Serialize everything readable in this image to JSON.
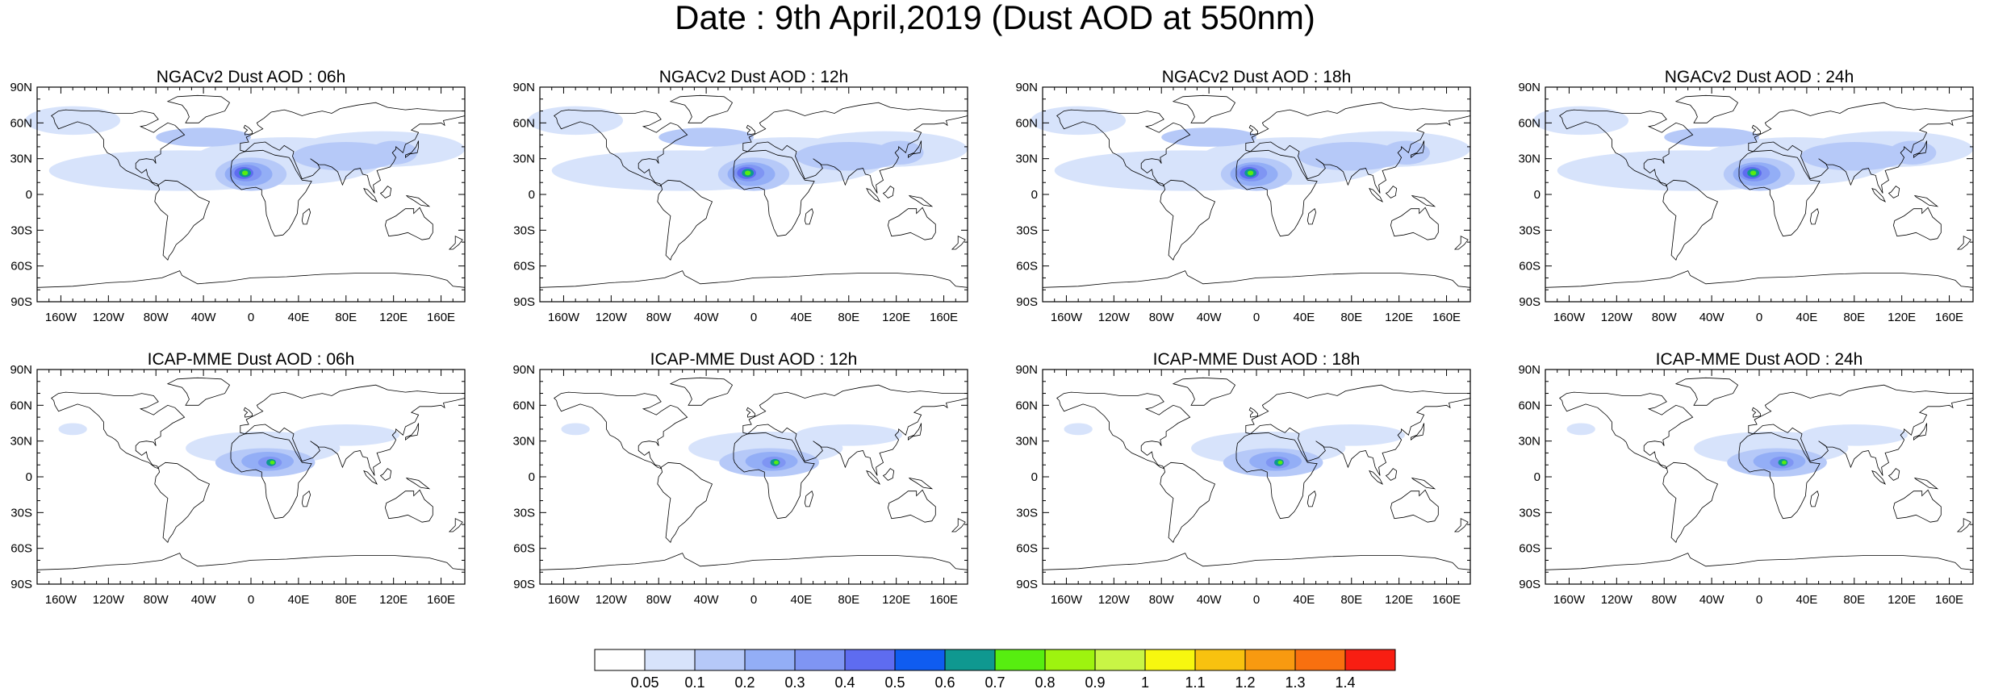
{
  "title": "Date : 9th April,2019 (Dust AOD at 550nm)",
  "panels": [
    {
      "title": "NGACv2 Dust AOD : 06h",
      "model": "NGACv2",
      "hour": "06h"
    },
    {
      "title": "NGACv2 Dust AOD : 12h",
      "model": "NGACv2",
      "hour": "12h"
    },
    {
      "title": "NGACv2 Dust AOD : 18h",
      "model": "NGACv2",
      "hour": "18h"
    },
    {
      "title": "NGACv2 Dust AOD : 24h",
      "model": "NGACv2",
      "hour": "24h"
    },
    {
      "title": "ICAP-MME Dust AOD : 06h",
      "model": "ICAP-MME",
      "hour": "06h"
    },
    {
      "title": "ICAP-MME Dust AOD : 12h",
      "model": "ICAP-MME",
      "hour": "12h"
    },
    {
      "title": "ICAP-MME Dust AOD : 18h",
      "model": "ICAP-MME",
      "hour": "18h"
    },
    {
      "title": "ICAP-MME Dust AOD : 24h",
      "model": "ICAP-MME",
      "hour": "24h"
    }
  ],
  "lat_ticks": [
    "90N",
    "60N",
    "30N",
    "0",
    "30S",
    "60S",
    "90S"
  ],
  "lon_ticks": [
    "160W",
    "120W",
    "80W",
    "40W",
    "0",
    "40E",
    "80E",
    "120E",
    "160E"
  ],
  "lon_tick_values": [
    -160,
    -120,
    -80,
    -40,
    0,
    40,
    80,
    120,
    160
  ],
  "lat_tick_values": [
    90,
    60,
    30,
    0,
    -30,
    -60,
    -90
  ],
  "colorbar": {
    "labels": [
      "0.05",
      "0.1",
      "0.2",
      "0.3",
      "0.4",
      "0.5",
      "0.6",
      "0.7",
      "0.8",
      "0.9",
      "1",
      "1.1",
      "1.2",
      "1.3",
      "1.4"
    ],
    "colors": [
      "#ffffff",
      "#d7e3fb",
      "#b6c9f8",
      "#93aef6",
      "#7f95f3",
      "#5e6cf0",
      "#0f5cf0",
      "#0f9890",
      "#57ee10",
      "#9ef30f",
      "#c9f545",
      "#f7f70f",
      "#f8c20f",
      "#f89a10",
      "#f8700f",
      "#f81e12"
    ]
  }
}
